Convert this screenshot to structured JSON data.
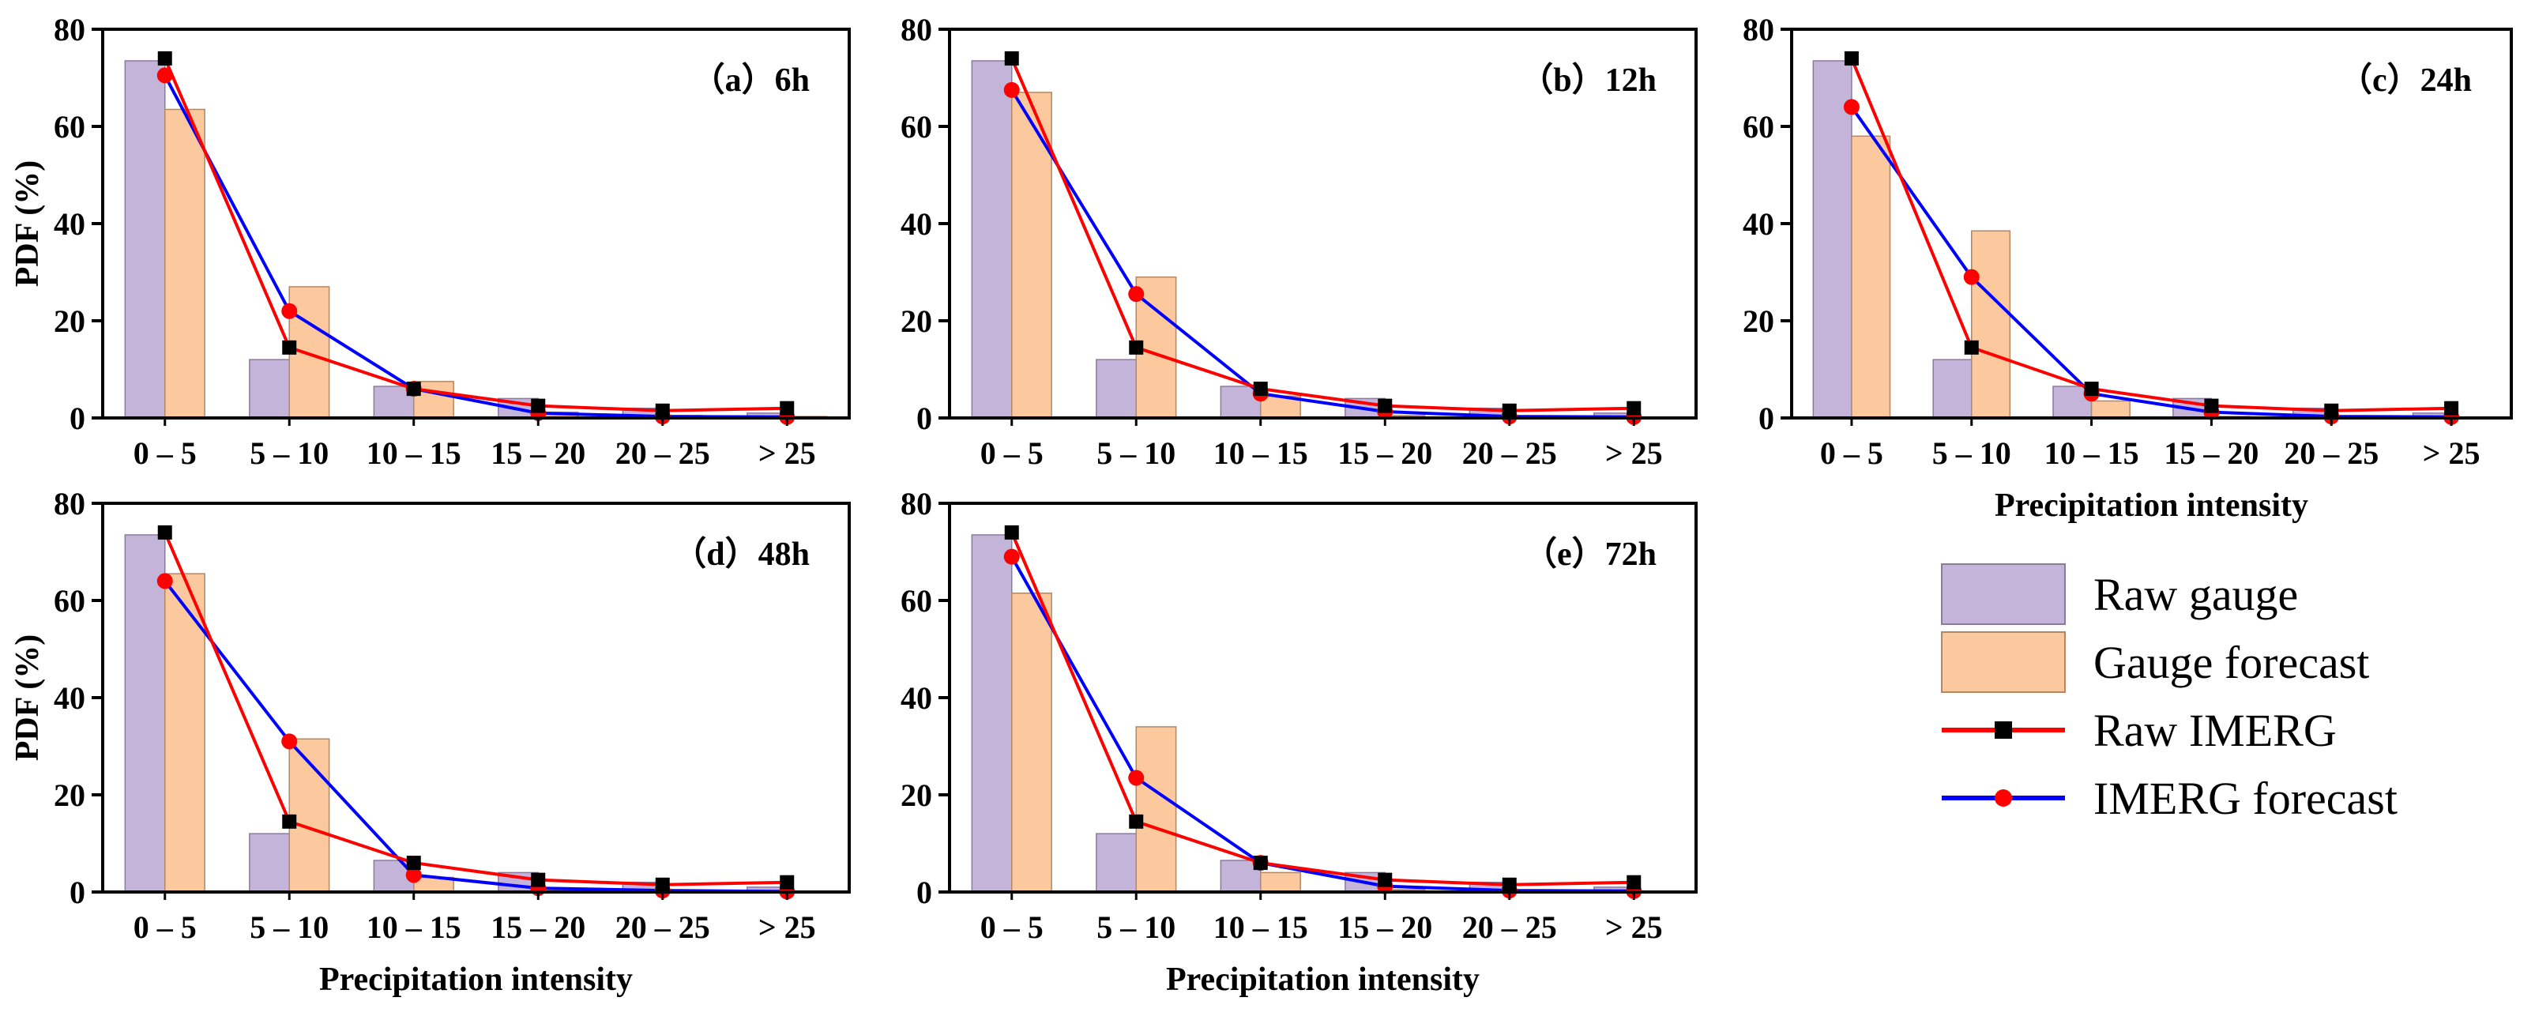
{
  "chart_data": {
    "type": "bar",
    "categories": [
      "0 – 5",
      "5 – 10",
      "10 – 15",
      "15 – 20",
      "20 – 25",
      "> 25"
    ],
    "ylim": [
      0,
      80
    ],
    "yticks": [
      0,
      20,
      40,
      60,
      80
    ],
    "ylabel": "PDF (%)",
    "xlabel": "Precipitation intensity",
    "colors": {
      "raw_gauge": "#c5b4d9",
      "gauge_forecast": "#fcc99e",
      "raw_imerg": "#ff0000",
      "imerg_forecast": "#0000ff",
      "marker_square": "#000000",
      "marker_circle": "#ff0000"
    },
    "legend": [
      {
        "key": "raw_gauge",
        "label": "Raw gauge"
      },
      {
        "key": "gauge_forecast",
        "label": "Gauge forecast"
      },
      {
        "key": "raw_imerg",
        "label": "Raw IMERG"
      },
      {
        "key": "imerg_forecast",
        "label": "IMERG forecast"
      }
    ],
    "panels": [
      {
        "label": "（a）6h",
        "series": {
          "raw_gauge": [
            73.5,
            12,
            6.5,
            4,
            2,
            1
          ],
          "gauge_forecast": [
            63.5,
            27,
            7.5,
            1.2,
            0.5,
            0.3
          ],
          "raw_imerg": [
            74,
            14.5,
            6,
            2.5,
            1.5,
            2
          ],
          "imerg_forecast": [
            70.5,
            22,
            6,
            1,
            0.3,
            0.2
          ]
        }
      },
      {
        "label": "（b）12h",
        "series": {
          "raw_gauge": [
            73.5,
            12,
            6.5,
            4,
            2,
            1
          ],
          "gauge_forecast": [
            67,
            29,
            4.5,
            0.5,
            0.1,
            0.1
          ],
          "raw_imerg": [
            74,
            14.5,
            6,
            2.5,
            1.5,
            2
          ],
          "imerg_forecast": [
            67.5,
            25.5,
            5,
            1.3,
            0.3,
            0.2
          ]
        }
      },
      {
        "label": "（c）24h",
        "series": {
          "raw_gauge": [
            73.5,
            12,
            6.5,
            4,
            2,
            1
          ],
          "gauge_forecast": [
            58,
            38.5,
            3.5,
            0.3,
            0.1,
            0.1
          ],
          "raw_imerg": [
            74,
            14.5,
            6,
            2.5,
            1.5,
            2
          ],
          "imerg_forecast": [
            64,
            29,
            5,
            1.2,
            0.3,
            0.2
          ]
        }
      },
      {
        "label": "（d）48h",
        "series": {
          "raw_gauge": [
            73.5,
            12,
            6.5,
            4,
            2,
            1
          ],
          "gauge_forecast": [
            65.5,
            31.5,
            3,
            0.3,
            0.1,
            0.1
          ],
          "raw_imerg": [
            74,
            14.5,
            6,
            2.5,
            1.5,
            2
          ],
          "imerg_forecast": [
            64,
            31,
            3.5,
            0.8,
            0.3,
            0.1
          ]
        }
      },
      {
        "label": "（e）72h",
        "series": {
          "raw_gauge": [
            73.5,
            12,
            6.5,
            4,
            2,
            1
          ],
          "gauge_forecast": [
            61.5,
            34,
            4,
            0.5,
            0.1,
            0.1
          ],
          "raw_imerg": [
            74,
            14.5,
            6,
            2.5,
            1.5,
            2
          ],
          "imerg_forecast": [
            69,
            23.5,
            6,
            1.2,
            0.3,
            0.2
          ]
        }
      }
    ]
  }
}
